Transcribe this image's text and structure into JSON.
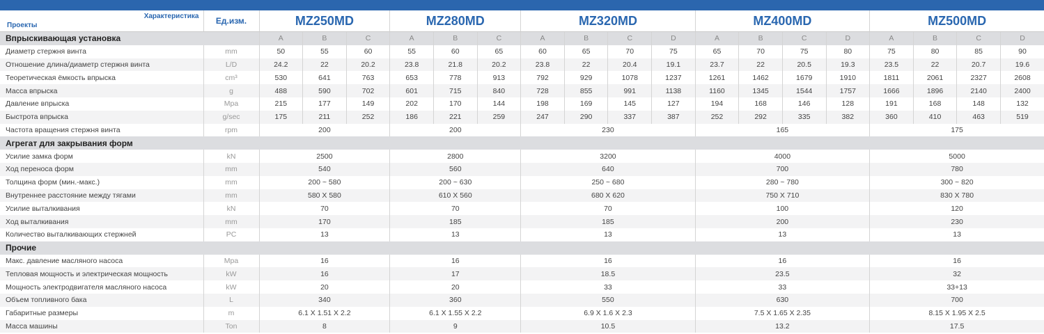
{
  "header": {
    "characteristic": "Характеристика",
    "projects": "Проекты",
    "unit": "Ед.изм.",
    "models": [
      {
        "name": "MZ250MD",
        "columns": [
          "A",
          "B",
          "C"
        ]
      },
      {
        "name": "MZ280MD",
        "columns": [
          "A",
          "B",
          "C"
        ]
      },
      {
        "name": "MZ320MD",
        "columns": [
          "A",
          "B",
          "C",
          "D"
        ]
      },
      {
        "name": "MZ400MD",
        "columns": [
          "A",
          "B",
          "C",
          "D"
        ]
      },
      {
        "name": "MZ500MD",
        "columns": [
          "A",
          "B",
          "C",
          "D"
        ]
      }
    ]
  },
  "sections": [
    {
      "title": "Впрыскивающая установка",
      "rows": [
        {
          "label": "Диаметр стержня винта",
          "unit": "mm",
          "values": [
            "50",
            "55",
            "60",
            "55",
            "60",
            "65",
            "60",
            "65",
            "70",
            "75",
            "65",
            "70",
            "75",
            "80",
            "75",
            "80",
            "85",
            "90"
          ]
        },
        {
          "label": "Отношение длина/диаметр стержня винта",
          "unit": "L/D",
          "values": [
            "24.2",
            "22",
            "20.2",
            "23.8",
            "21.8",
            "20.2",
            "23.8",
            "22",
            "20.4",
            "19.1",
            "23.7",
            "22",
            "20.5",
            "19.3",
            "23.5",
            "22",
            "20.7",
            "19.6"
          ]
        },
        {
          "label": "Теоретическая ёмкость впрыска",
          "unit": "cm³",
          "values": [
            "530",
            "641",
            "763",
            "653",
            "778",
            "913",
            "792",
            "929",
            "1078",
            "1237",
            "1261",
            "1462",
            "1679",
            "1910",
            "1811",
            "2061",
            "2327",
            "2608"
          ]
        },
        {
          "label": "Масса впрыска",
          "unit": "g",
          "values": [
            "488",
            "590",
            "702",
            "601",
            "715",
            "840",
            "728",
            "855",
            "991",
            "1138",
            "1160",
            "1345",
            "1544",
            "1757",
            "1666",
            "1896",
            "2140",
            "2400"
          ]
        },
        {
          "label": "Давление впрыска",
          "unit": "Mpa",
          "values": [
            "215",
            "177",
            "149",
            "202",
            "170",
            "144",
            "198",
            "169",
            "145",
            "127",
            "194",
            "168",
            "146",
            "128",
            "191",
            "168",
            "148",
            "132"
          ]
        },
        {
          "label": "Быстрота впрыска",
          "unit": "g/sec",
          "values": [
            "175",
            "211",
            "252",
            "186",
            "221",
            "259",
            "247",
            "290",
            "337",
            "387",
            "252",
            "292",
            "335",
            "382",
            "360",
            "410",
            "463",
            "519"
          ]
        },
        {
          "label": "Частота вращения стержня винта",
          "unit": "rpm",
          "values": [
            "200",
            "200",
            "230",
            "165",
            "175"
          ]
        }
      ]
    },
    {
      "title": "Агрегат для закрывания форм",
      "rows": [
        {
          "label": "Усилие замка форм",
          "unit": "kN",
          "values": [
            "2500",
            "2800",
            "3200",
            "4000",
            "5000"
          ]
        },
        {
          "label": "Ход переноса форм",
          "unit": "mm",
          "values": [
            "540",
            "560",
            "640",
            "700",
            "780"
          ]
        },
        {
          "label": "Толщина форм (мин.-макс.)",
          "unit": "mm",
          "values": [
            "200 ~ 580",
            "200 ~ 630",
            "250 ~ 680",
            "280 ~ 780",
            "300 ~ 820"
          ]
        },
        {
          "label": "Внутреннее расстояние между тягами",
          "unit": "mm",
          "values": [
            "580 X 580",
            "610 X 560",
            "680 X 620",
            "750 X 710",
            "830 X 780"
          ]
        },
        {
          "label": "Усилие выталкивания",
          "unit": "kN",
          "values": [
            "70",
            "70",
            "70",
            "100",
            "120"
          ]
        },
        {
          "label": "Ход выталкивания",
          "unit": "mm",
          "values": [
            "170",
            "185",
            "185",
            "200",
            "230"
          ]
        },
        {
          "label": "Количество выталкивающих стержней",
          "unit": "PC",
          "values": [
            "13",
            "13",
            "13",
            "13",
            "13"
          ]
        }
      ]
    },
    {
      "title": "Прочие",
      "rows": [
        {
          "label": "Макс. давление масляного насоса",
          "unit": "Mpa",
          "values": [
            "16",
            "16",
            "16",
            "16",
            "16"
          ]
        },
        {
          "label": "Тепловая мощность и электрическая мощность",
          "unit": "kW",
          "values": [
            "16",
            "17",
            "18.5",
            "23.5",
            "32"
          ]
        },
        {
          "label": "Мощность электродвигателя масляного насоса",
          "unit": "kW",
          "values": [
            "20",
            "20",
            "33",
            "33",
            "33+13"
          ]
        },
        {
          "label": "Объем топливного бака",
          "unit": "L",
          "values": [
            "340",
            "360",
            "550",
            "630",
            "700"
          ]
        },
        {
          "label": "Габаритные размеры",
          "unit": "m",
          "values": [
            "6.1 X 1.51 X 2.2",
            "6.1 X 1.55 X 2.2",
            "6.9 X 1.6 X 2.3",
            "7.5 X 1.65 X 2.35",
            "8.15 X 1.95 X 2.5"
          ]
        },
        {
          "label": "Масса машины",
          "unit": "Ton",
          "values": [
            "8",
            "9",
            "10.5",
            "13.2",
            "17.5"
          ]
        }
      ]
    }
  ]
}
